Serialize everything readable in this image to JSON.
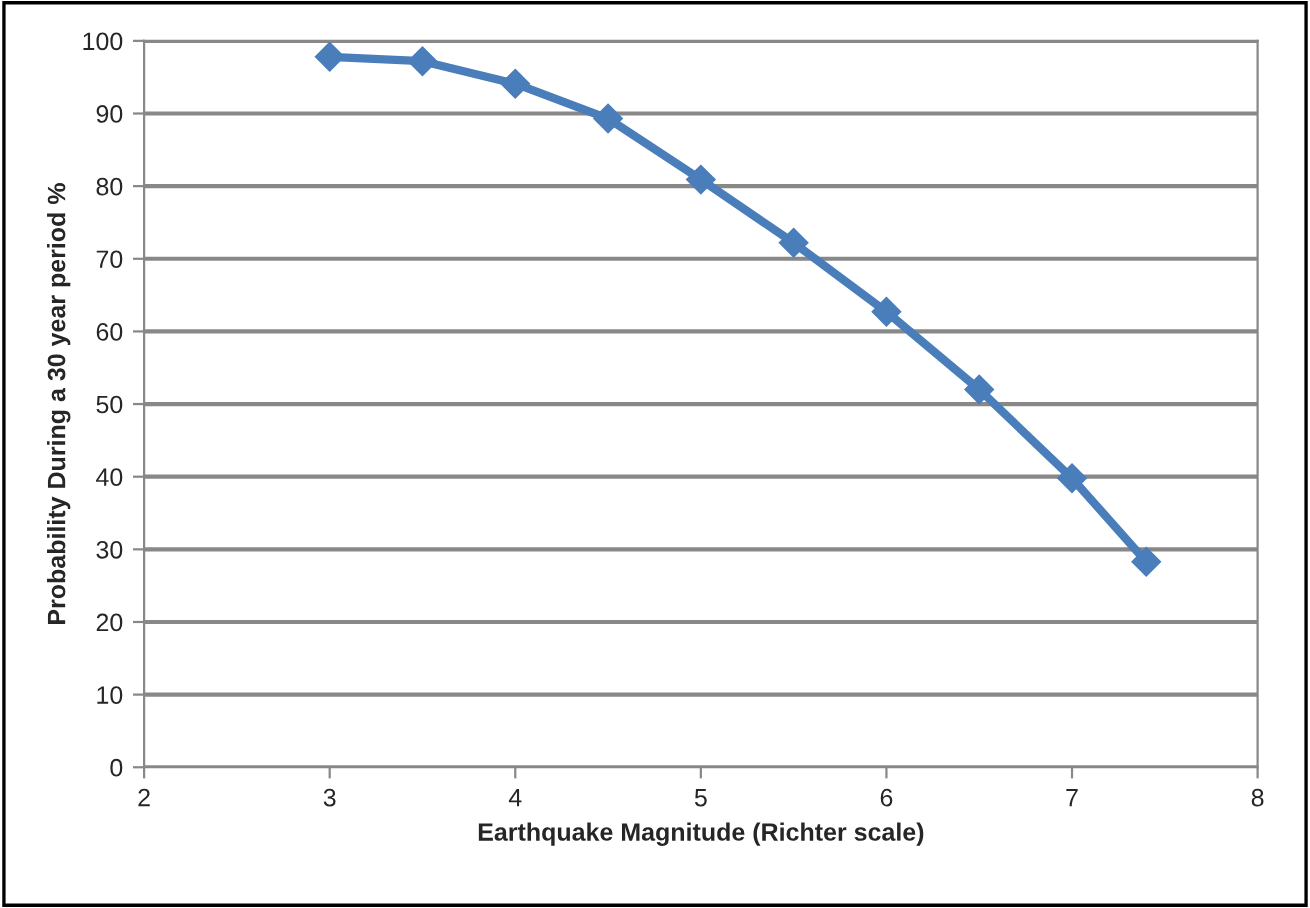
{
  "chart_data": {
    "type": "line",
    "xlabel": "Earthquake Magnitude (Richter scale)",
    "ylabel": "Probability During a 30 year period %",
    "x": [
      3,
      3.5,
      4,
      4.5,
      5,
      5.5,
      6,
      6.5,
      7,
      7.4
    ],
    "series": [
      {
        "color": "#4a7ebb",
        "values": [
          97.8,
          97.2,
          94.1,
          89.3,
          80.9,
          72.2,
          62.7,
          52,
          39.8,
          28.3
        ]
      }
    ],
    "xlim": [
      2,
      8
    ],
    "xticks": [
      2,
      3,
      4,
      5,
      6,
      7,
      8
    ],
    "ylim": [
      0,
      100
    ],
    "yticks": [
      0,
      10,
      20,
      30,
      40,
      50,
      60,
      70,
      80,
      90,
      100
    ],
    "grid": "y",
    "marker": "diamond",
    "line_style": "solid",
    "legend": false
  }
}
